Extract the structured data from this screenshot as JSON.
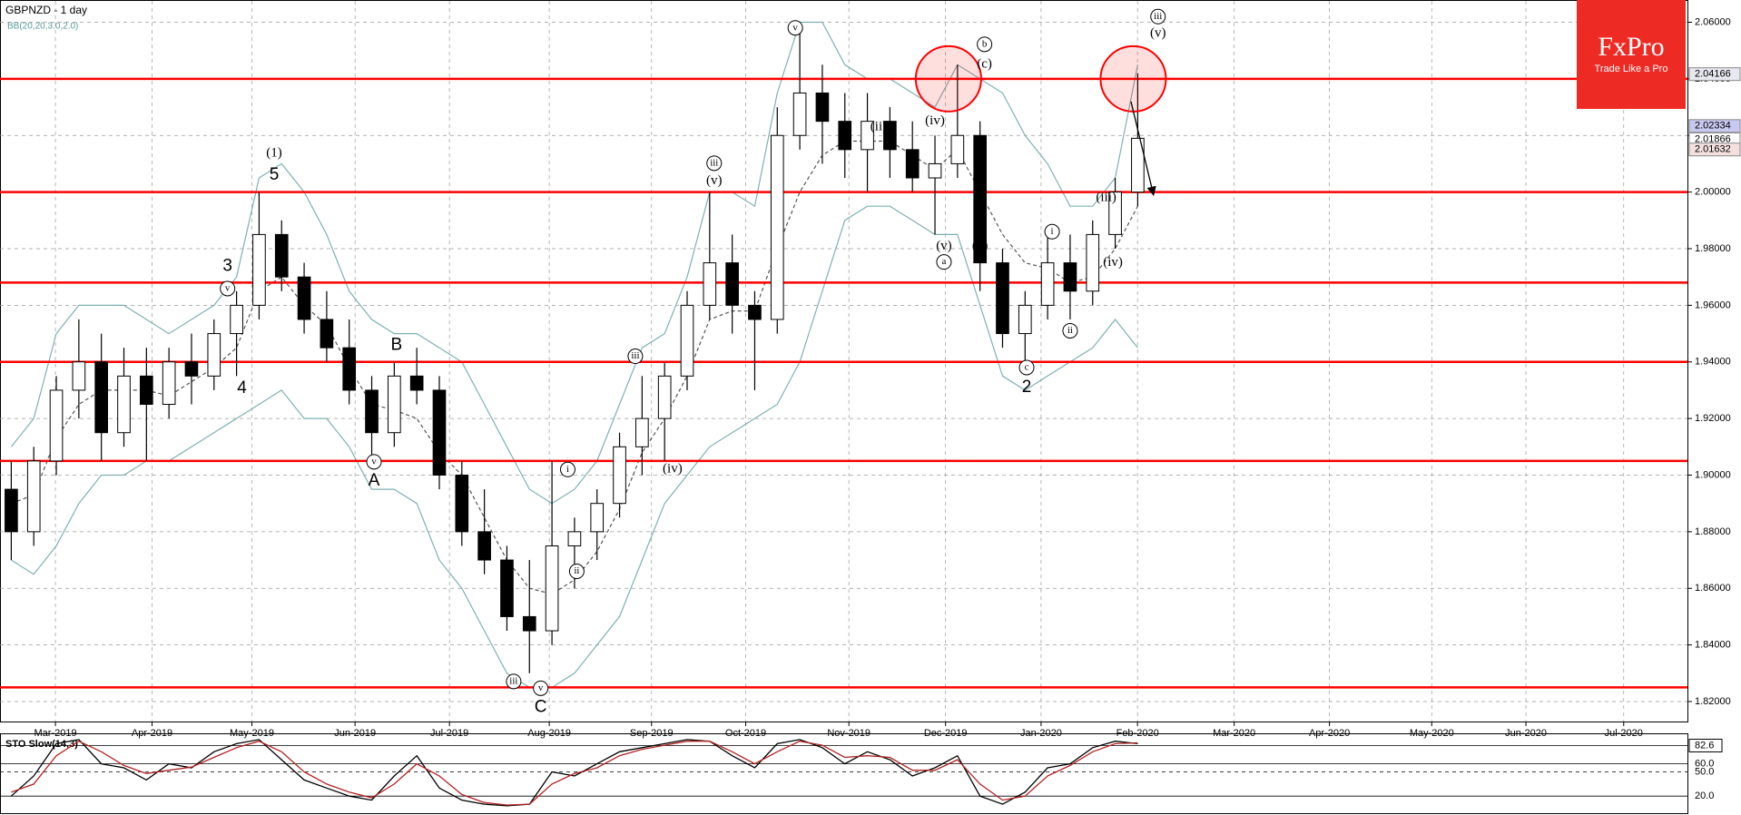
{
  "chart_data": [
    {
      "type": "candlestick",
      "title": "GBPNZD - 1 day",
      "indicator": "BB(20,20,3.0,2.0)",
      "open": [
        1.895,
        1.88,
        1.905,
        1.93,
        1.94,
        1.915,
        1.935,
        1.925,
        1.94,
        1.935,
        1.95,
        1.96,
        1.985,
        1.97,
        1.955,
        1.945,
        1.93,
        1.915,
        1.935,
        1.93,
        1.9,
        1.88,
        1.87,
        1.85,
        1.845,
        1.875,
        1.88,
        1.89,
        1.91,
        1.92,
        1.935,
        1.96,
        1.975,
        1.96,
        1.955,
        2.02,
        2.035,
        2.025,
        2.015,
        2.025,
        2.015,
        2.005,
        2.01,
        2.02,
        1.975,
        1.95,
        1.96,
        1.975,
        1.965,
        1.985,
        2.0
      ],
      "high": [
        1.905,
        1.91,
        1.935,
        1.955,
        1.95,
        1.945,
        1.945,
        1.945,
        1.95,
        1.955,
        1.965,
        2.0,
        1.99,
        1.975,
        1.965,
        1.955,
        1.935,
        1.94,
        1.945,
        1.935,
        1.905,
        1.895,
        1.875,
        1.87,
        1.905,
        1.885,
        1.895,
        1.915,
        1.935,
        1.94,
        1.965,
        2.0,
        1.985,
        1.965,
        2.03,
        2.06,
        2.045,
        2.035,
        2.035,
        2.03,
        2.025,
        2.02,
        2.045,
        2.025,
        1.98,
        1.965,
        1.985,
        1.985,
        1.99,
        2.005,
        2.042
      ],
      "low": [
        1.87,
        1.875,
        1.9,
        1.92,
        1.905,
        1.91,
        1.905,
        1.92,
        1.925,
        1.93,
        1.935,
        1.955,
        1.965,
        1.95,
        1.94,
        1.925,
        1.905,
        1.91,
        1.925,
        1.895,
        1.875,
        1.865,
        1.845,
        1.83,
        1.84,
        1.86,
        1.87,
        1.885,
        1.9,
        1.905,
        1.93,
        1.955,
        1.95,
        1.93,
        1.95,
        2.015,
        2.01,
        2.005,
        2.0,
        2.005,
        2.0,
        1.985,
        2.005,
        1.965,
        1.945,
        1.94,
        1.955,
        1.955,
        1.96,
        1.98,
        1.995
      ],
      "close": [
        1.88,
        1.905,
        1.93,
        1.94,
        1.915,
        1.935,
        1.925,
        1.94,
        1.935,
        1.95,
        1.96,
        1.985,
        1.97,
        1.955,
        1.945,
        1.93,
        1.915,
        1.935,
        1.93,
        1.9,
        1.88,
        1.87,
        1.85,
        1.845,
        1.875,
        1.88,
        1.89,
        1.91,
        1.92,
        1.935,
        1.96,
        1.975,
        1.96,
        1.955,
        2.02,
        2.035,
        2.025,
        2.015,
        2.025,
        2.015,
        2.005,
        2.01,
        2.02,
        1.975,
        1.95,
        1.96,
        1.975,
        1.965,
        1.985,
        2.0,
        2.019
      ],
      "bb": {
        "color": "#7fb0b0",
        "upper": [
          1.91,
          1.92,
          1.95,
          1.96,
          1.96,
          1.96,
          1.955,
          1.95,
          1.955,
          1.96,
          1.97,
          2.005,
          2.01,
          2.0,
          1.985,
          1.965,
          1.955,
          1.95,
          1.95,
          1.945,
          1.94,
          1.925,
          1.91,
          1.895,
          1.89,
          1.895,
          1.905,
          1.925,
          1.945,
          1.95,
          1.97,
          2.0,
          2.0,
          1.995,
          2.035,
          2.06,
          2.06,
          2.045,
          2.04,
          2.04,
          2.035,
          2.03,
          2.045,
          2.04,
          2.035,
          2.02,
          2.01,
          1.995,
          1.995,
          2.005,
          2.045
        ],
        "middle": [
          1.89,
          1.893,
          1.913,
          1.925,
          1.93,
          1.93,
          1.93,
          1.928,
          1.933,
          1.938,
          1.945,
          1.965,
          1.97,
          1.96,
          1.953,
          1.938,
          1.925,
          1.923,
          1.92,
          1.908,
          1.9,
          1.885,
          1.87,
          1.86,
          1.858,
          1.863,
          1.873,
          1.888,
          1.908,
          1.92,
          1.935,
          1.955,
          1.958,
          1.958,
          1.98,
          2.0,
          2.013,
          2.018,
          2.018,
          2.018,
          2.013,
          2.008,
          2.015,
          2.0,
          1.985,
          1.975,
          1.973,
          1.968,
          1.97,
          1.98,
          1.995
        ],
        "lower": [
          1.87,
          1.865,
          1.875,
          1.89,
          1.9,
          1.9,
          1.905,
          1.905,
          1.91,
          1.915,
          1.92,
          1.925,
          1.93,
          1.92,
          1.92,
          1.91,
          1.895,
          1.895,
          1.89,
          1.87,
          1.86,
          1.845,
          1.83,
          1.825,
          1.825,
          1.83,
          1.84,
          1.85,
          1.87,
          1.89,
          1.9,
          1.91,
          1.915,
          1.92,
          1.925,
          1.94,
          1.965,
          1.99,
          1.995,
          1.995,
          1.99,
          1.985,
          1.985,
          1.96,
          1.935,
          1.93,
          1.935,
          1.94,
          1.945,
          1.955,
          1.945
        ]
      },
      "xlim": [
        0,
        74.9
      ],
      "xticks": [
        {
          "value": 2.46,
          "label": "Mar-2019"
        },
        {
          "value": 6.75,
          "label": "Apr-2019"
        },
        {
          "value": 11.18,
          "label": "May-2019"
        },
        {
          "value": 15.76,
          "label": "Jun-2019"
        },
        {
          "value": 19.95,
          "label": "Jul-2019"
        },
        {
          "value": 24.38,
          "label": "Aug-2019"
        },
        {
          "value": 28.92,
          "label": "Sep-2019"
        },
        {
          "value": 33.1,
          "label": "Oct-2019"
        },
        {
          "value": 37.68,
          "label": "Nov-2019"
        },
        {
          "value": 41.97,
          "label": "Dec-2019"
        },
        {
          "value": 46.21,
          "label": "Jan-2020"
        },
        {
          "value": 50.49,
          "label": "Feb-2020"
        },
        {
          "value": 54.78,
          "label": "Mar-2020"
        },
        {
          "value": 59.01,
          "label": "Apr-2020"
        },
        {
          "value": 63.55,
          "label": "May-2020"
        },
        {
          "value": 67.73,
          "label": "Jun-2020"
        },
        {
          "value": 72.07,
          "label": "Jul-2020"
        }
      ],
      "ylim": [
        1.82,
        2.06
      ],
      "yticks": [
        {
          "value": 1.82,
          "label": "1.82000"
        },
        {
          "value": 1.84,
          "label": "1.84000"
        },
        {
          "value": 1.86,
          "label": "1.86000"
        },
        {
          "value": 1.88,
          "label": "1.88000"
        },
        {
          "value": 1.9,
          "label": "1.90000"
        },
        {
          "value": 1.92,
          "label": "1.92000"
        },
        {
          "value": 1.94,
          "label": "1.94000"
        },
        {
          "value": 1.96,
          "label": "1.96000"
        },
        {
          "value": 1.98,
          "label": "1.98000"
        },
        {
          "value": 2.0,
          "label": "2.00000"
        },
        {
          "value": 2.02,
          "label": "2.02000"
        },
        {
          "value": 2.04,
          "label": "2.04000"
        },
        {
          "value": 2.06,
          "label": "2.06000"
        }
      ],
      "grid": true,
      "levels": {
        "color": "#ff0000",
        "values": [
          2.04,
          2.0,
          1.968,
          1.94,
          1.905,
          1.825
        ]
      },
      "price_labels": [
        {
          "value": 2.04166,
          "label": "2.04166",
          "color": "#e8e8f0"
        },
        {
          "value": 2.02334,
          "label": "2.02334",
          "color": "#c8c8f0"
        },
        {
          "value": 2.01866,
          "label": "2.01866",
          "color": "#ffffff"
        },
        {
          "value": 2.01632,
          "label": "2.01632",
          "color": "#f5e0e0"
        }
      ],
      "highlights": [
        {
          "x": 42.1,
          "y": 2.04
        },
        {
          "x": 50.3,
          "y": 2.04
        }
      ],
      "arrow": {
        "x1": 50.2,
        "y1": 2.032,
        "x2": 51.2,
        "y2": 1.999
      },
      "annotations": [
        {
          "x": 12.17,
          "y": 2.0137,
          "text": "(1)",
          "circled": false
        },
        {
          "x": 12.17,
          "y": 2.0059,
          "text": "5",
          "circled": false
        },
        {
          "x": 10.1,
          "y": 1.9737,
          "text": "3",
          "circled": false
        },
        {
          "x": 10.1,
          "y": 1.9659,
          "text": "v",
          "circled": true
        },
        {
          "x": 10.74,
          "y": 1.9306,
          "text": "4",
          "circled": false
        },
        {
          "x": 17.6,
          "y": 1.9459,
          "text": "B",
          "circled": false
        },
        {
          "x": 16.6,
          "y": 1.898,
          "text": "A",
          "circled": false
        },
        {
          "x": 16.6,
          "y": 1.9047,
          "text": "v",
          "circled": true
        },
        {
          "x": 24.0,
          "y": 1.818,
          "text": "C",
          "circled": false
        },
        {
          "x": 24.0,
          "y": 1.8247,
          "text": "v",
          "circled": true
        },
        {
          "x": 22.8,
          "y": 1.8271,
          "text": "iii",
          "circled": true
        },
        {
          "x": 45.57,
          "y": 1.931,
          "text": "2",
          "circled": false
        },
        {
          "x": 45.57,
          "y": 1.938,
          "text": "c",
          "circled": true
        },
        {
          "x": 43.7,
          "y": 2.0451,
          "text": "(c)",
          "circled": false
        },
        {
          "x": 43.7,
          "y": 2.0522,
          "text": "b",
          "circled": true
        },
        {
          "x": 35.3,
          "y": 2.058,
          "text": "v",
          "circled": true
        },
        {
          "x": 51.4,
          "y": 2.062,
          "text": "iii",
          "circled": true
        },
        {
          "x": 51.4,
          "y": 2.056,
          "text": "(v)",
          "circled": false
        },
        {
          "x": 43.5,
          "y": 1.9808,
          "text": "(b)",
          "circled": false
        },
        {
          "x": 41.9,
          "y": 1.9808,
          "text": "(v)",
          "circled": false
        },
        {
          "x": 41.9,
          "y": 1.9753,
          "text": "a",
          "circled": true
        },
        {
          "x": 31.7,
          "y": 2.0102,
          "text": "iii",
          "circled": true
        },
        {
          "x": 31.7,
          "y": 2.0039,
          "text": "(v)",
          "circled": false
        },
        {
          "x": 29.85,
          "y": 1.902,
          "text": "(iv)",
          "circled": false
        },
        {
          "x": 28.2,
          "y": 1.942,
          "text": "iii",
          "circled": true
        },
        {
          "x": 25.2,
          "y": 1.902,
          "text": "i",
          "circled": true
        },
        {
          "x": 25.6,
          "y": 1.866,
          "text": "ii",
          "circled": true
        },
        {
          "x": 39.0,
          "y": 2.023,
          "text": "(ii)",
          "circled": false
        },
        {
          "x": 41.5,
          "y": 2.025,
          "text": "(iv)",
          "circled": false
        },
        {
          "x": 49.1,
          "y": 1.998,
          "text": "(iii)",
          "circled": false
        },
        {
          "x": 49.4,
          "y": 1.975,
          "text": "(iv)",
          "circled": false
        },
        {
          "x": 46.7,
          "y": 1.986,
          "text": "i",
          "circled": true
        },
        {
          "x": 47.5,
          "y": 1.951,
          "text": "ii",
          "circled": true
        }
      ]
    },
    {
      "type": "line",
      "title": "STO Slow(14,3)",
      "xlim": [
        0,
        74.9
      ],
      "ylim": [
        0,
        100
      ],
      "yticks": [
        82.6,
        {
          "value": 60,
          "label": "60.0"
        },
        {
          "value": 50,
          "label": "50.0"
        },
        {
          "value": 20,
          "label": "20.0"
        }
      ],
      "series": [
        {
          "color": "#000000",
          "values": [
            20,
            45,
            85,
            90,
            60,
            55,
            40,
            60,
            55,
            75,
            85,
            90,
            65,
            40,
            30,
            20,
            15,
            45,
            70,
            30,
            15,
            10,
            8,
            10,
            50,
            45,
            60,
            75,
            80,
            85,
            90,
            88,
            70,
            55,
            85,
            90,
            80,
            60,
            75,
            65,
            45,
            55,
            70,
            20,
            10,
            25,
            55,
            60,
            80,
            88,
            85
          ]
        },
        {
          "color": "#b22222",
          "values": [
            25,
            35,
            70,
            88,
            75,
            58,
            48,
            52,
            56,
            68,
            80,
            88,
            75,
            50,
            35,
            25,
            18,
            35,
            60,
            45,
            22,
            12,
            9,
            10,
            35,
            48,
            55,
            70,
            78,
            83,
            88,
            88,
            75,
            60,
            75,
            88,
            83,
            68,
            70,
            68,
            52,
            52,
            65,
            35,
            15,
            20,
            45,
            58,
            75,
            85,
            86
          ]
        }
      ]
    },
    {
      "type": "logo",
      "brand": "FxPro",
      "tagline": "Trade Like a Pro",
      "color": "#ee2a24"
    }
  ]
}
